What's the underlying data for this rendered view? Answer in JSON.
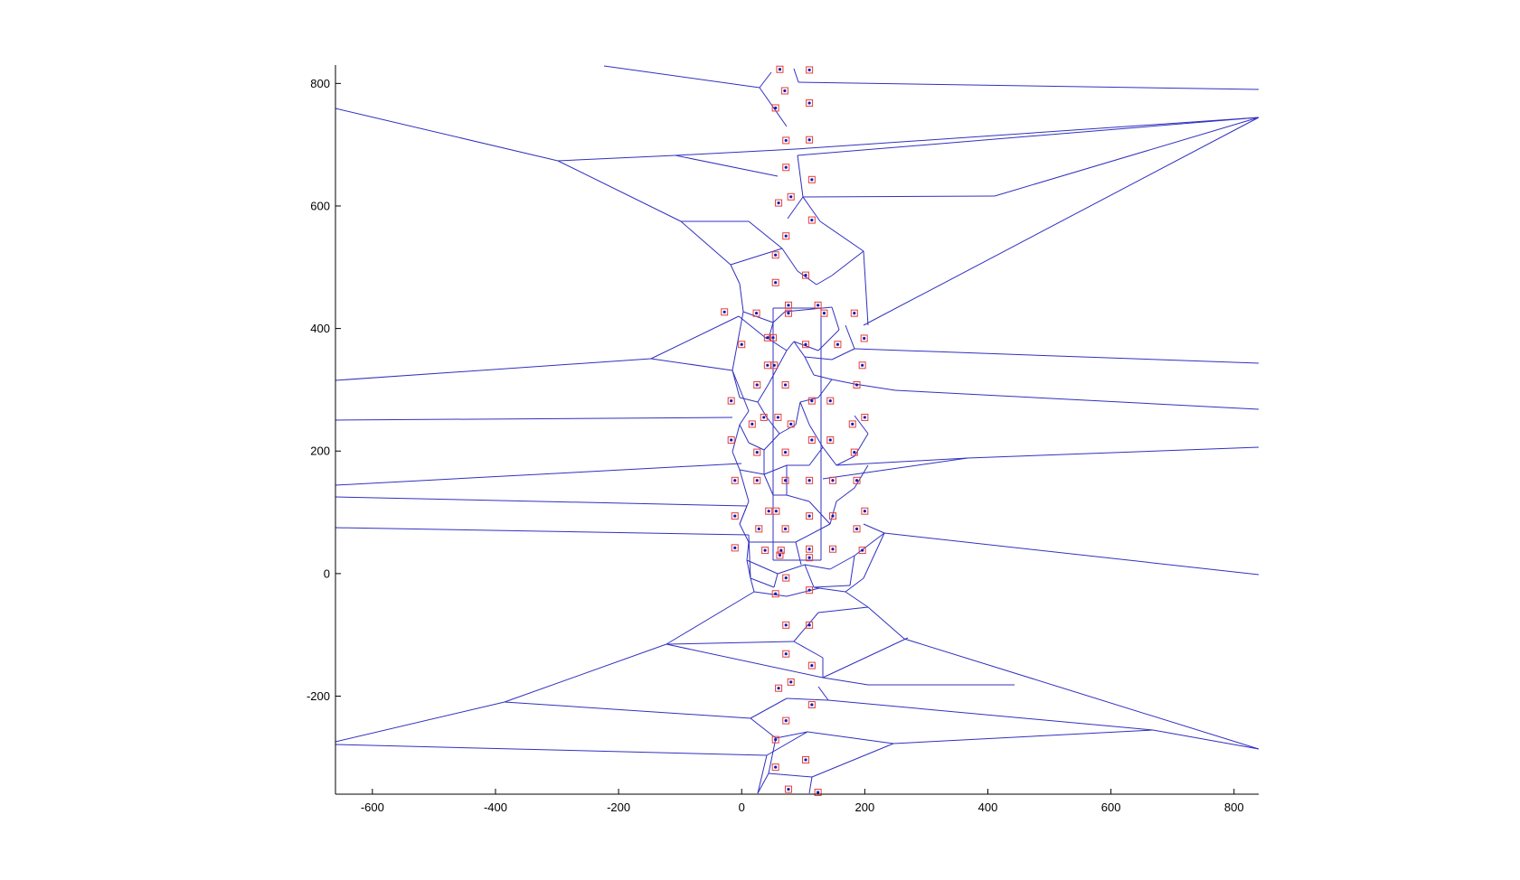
{
  "chart_data": {
    "type": "scatter",
    "title": "",
    "xlabel": "",
    "ylabel": "",
    "xlim": [
      -660,
      840
    ],
    "ylim": [
      -360,
      830
    ],
    "xticks": [
      -600,
      -400,
      -200,
      0,
      200,
      400,
      600,
      800
    ],
    "yticks": [
      -200,
      0,
      200,
      400,
      600,
      800
    ],
    "xtick_labels": [
      "-600",
      "-400",
      "-200",
      "0",
      "200",
      "400",
      "600",
      "800"
    ],
    "ytick_labels": [
      "-200",
      "0",
      "200",
      "400",
      "600",
      "800"
    ],
    "grid": false,
    "colors": {
      "edges": "#3030c0",
      "marker_box": "#e04040",
      "marker_dot": "#1a1aa8",
      "axes": "#000000"
    },
    "series": [
      {
        "marker": "boxed-dot",
        "points": [
          [
            62,
            823
          ],
          [
            110,
            822
          ],
          [
            70,
            788
          ],
          [
            110,
            768
          ],
          [
            55,
            760
          ],
          [
            72,
            707
          ],
          [
            110,
            708
          ],
          [
            72,
            663
          ],
          [
            114,
            643
          ],
          [
            80,
            615
          ],
          [
            60,
            605
          ],
          [
            114,
            577
          ],
          [
            72,
            551
          ],
          [
            55,
            520
          ],
          [
            104,
            487
          ],
          [
            55,
            475
          ],
          [
            -28,
            427
          ],
          [
            24,
            425
          ],
          [
            76,
            438
          ],
          [
            76,
            425
          ],
          [
            124,
            438
          ],
          [
            134,
            425
          ],
          [
            183,
            425
          ],
          [
            0,
            374
          ],
          [
            42,
            385
          ],
          [
            51,
            385
          ],
          [
            104,
            374
          ],
          [
            156,
            374
          ],
          [
            199,
            384
          ],
          [
            42,
            340
          ],
          [
            53,
            340
          ],
          [
            196,
            340
          ],
          [
            25,
            308
          ],
          [
            71,
            308
          ],
          [
            187,
            308
          ],
          [
            -17,
            282
          ],
          [
            114,
            282
          ],
          [
            144,
            282
          ],
          [
            36,
            255
          ],
          [
            59,
            255
          ],
          [
            200,
            255
          ],
          [
            17,
            244
          ],
          [
            80,
            244
          ],
          [
            180,
            244
          ],
          [
            -17,
            218
          ],
          [
            114,
            218
          ],
          [
            144,
            218
          ],
          [
            25,
            198
          ],
          [
            71,
            198
          ],
          [
            183,
            198
          ],
          [
            -11,
            152
          ],
          [
            25,
            152
          ],
          [
            71,
            152
          ],
          [
            110,
            152
          ],
          [
            148,
            152
          ],
          [
            187,
            152
          ],
          [
            -11,
            94
          ],
          [
            44,
            102
          ],
          [
            56,
            102
          ],
          [
            110,
            94
          ],
          [
            148,
            94
          ],
          [
            200,
            102
          ],
          [
            28,
            73
          ],
          [
            71,
            73
          ],
          [
            187,
            73
          ],
          [
            -11,
            42
          ],
          [
            38,
            38
          ],
          [
            64,
            38
          ],
          [
            110,
            40
          ],
          [
            148,
            40
          ],
          [
            196,
            38
          ],
          [
            62,
            30
          ],
          [
            110,
            26
          ],
          [
            72,
            -7
          ],
          [
            110,
            -27
          ],
          [
            55,
            -33
          ],
          [
            72,
            -84
          ],
          [
            110,
            -84
          ],
          [
            72,
            -131
          ],
          [
            114,
            -150
          ],
          [
            80,
            -177
          ],
          [
            60,
            -187
          ],
          [
            114,
            -214
          ],
          [
            72,
            -240
          ],
          [
            55,
            -271
          ],
          [
            104,
            -304
          ],
          [
            55,
            -316
          ],
          [
            76,
            -352
          ],
          [
            124,
            -357
          ]
        ]
      }
    ]
  }
}
